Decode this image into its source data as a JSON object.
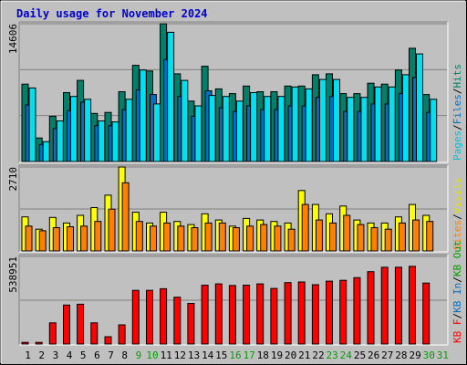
{
  "chart_data": {
    "type": "bar",
    "title": "Daily usage for November 2024",
    "days": [
      "1",
      "2",
      "3",
      "4",
      "5",
      "6",
      "7",
      "8",
      "9",
      "10",
      "11",
      "12",
      "13",
      "14",
      "15",
      "16",
      "17",
      "18",
      "19",
      "20",
      "21",
      "22",
      "23",
      "24",
      "25",
      "26",
      "27",
      "28",
      "29",
      "30",
      "31"
    ],
    "weekend_days": [
      "9",
      "10",
      "16",
      "17",
      "23",
      "24",
      "30",
      "31"
    ],
    "panels": [
      {
        "ymax_label": "14606",
        "ymax": 14606,
        "legend": [
          {
            "text": "Hits",
            "color": "#00806a"
          },
          {
            "text": "/",
            "color": "#000000"
          },
          {
            "text": "Files",
            "color": "#0070c0"
          },
          {
            "text": "/",
            "color": "#000000"
          },
          {
            "text": "Pages",
            "color": "#00c0d8"
          }
        ],
        "series": [
          {
            "name": "Hits",
            "color": "#00806a",
            "values": [
              8200,
              2500,
              4800,
              7300,
              8600,
              5100,
              5200,
              7400,
              10200,
              9600,
              14600,
              9300,
              6400,
              10100,
              7700,
              7200,
              8000,
              7400,
              7400,
              8000,
              8000,
              9200,
              9300,
              7200,
              7200,
              8300,
              8200,
              9700,
              12000,
              7100,
              0
            ]
          },
          {
            "name": "Files",
            "color": "#0070c0",
            "values": [
              6000,
              1800,
              3500,
              5400,
              6300,
              3800,
              3800,
              5500,
              7600,
              7100,
              10800,
              6900,
              4800,
              7500,
              5700,
              5300,
              5900,
              5500,
              5500,
              5900,
              5900,
              6800,
              6900,
              5300,
              5300,
              6100,
              6100,
              7200,
              8900,
              5200,
              0
            ]
          },
          {
            "name": "Pages",
            "color": "#00e0f0",
            "values": [
              7800,
              2100,
              4300,
              6900,
              6600,
              4300,
              4200,
              6600,
              9700,
              6100,
              13700,
              8600,
              5900,
              7000,
              6900,
              6400,
              7300,
              6900,
              6900,
              7900,
              7700,
              8700,
              8700,
              6800,
              6800,
              7900,
              7900,
              9200,
              11400,
              6600,
              0
            ]
          }
        ]
      },
      {
        "ymax_label": "2710",
        "ymax": 2710,
        "legend": [
          {
            "text": "Visits",
            "color": "#e0e000"
          },
          {
            "text": "/",
            "color": "#000000"
          },
          {
            "text": "Sites",
            "color": "#ff8000"
          }
        ],
        "series": [
          {
            "name": "Visits",
            "color": "#ffff00",
            "values": [
              1100,
              700,
              1080,
              900,
              1150,
              1400,
              1800,
              2710,
              1250,
              900,
              1250,
              950,
              850,
              1200,
              1000,
              800,
              1050,
              1000,
              950,
              900,
              1950,
              1500,
              1200,
              1450,
              1000,
              900,
              900,
              1100,
              1500,
              1150,
              0
            ]
          },
          {
            "name": "Sites",
            "color": "#ff8000",
            "values": [
              800,
              650,
              750,
              780,
              800,
              950,
              1350,
              2200,
              950,
              800,
              900,
              800,
              750,
              900,
              900,
              750,
              800,
              850,
              800,
              700,
              1500,
              1000,
              900,
              1150,
              850,
              750,
              700,
              900,
              1000,
              950,
              0
            ]
          }
        ]
      },
      {
        "ymax_label": "538951",
        "ymax": 538951,
        "legend": [
          {
            "text": "KB Out",
            "color": "#00a000"
          },
          {
            "text": "/",
            "color": "#000000"
          },
          {
            "text": "KB In",
            "color": "#0070c0"
          },
          {
            "text": "/",
            "color": "#000000"
          },
          {
            "text": "KB F",
            "color": "#ff0000"
          }
        ],
        "series": [
          {
            "name": "KB F",
            "color": "#ff0000",
            "values": [
              10000,
              10000,
              130000,
              240000,
              245000,
              130000,
              45000,
              118000,
              330000,
              330000,
              340000,
              288000,
              250000,
              362000,
              370000,
              360000,
              362000,
              370000,
              342000,
              378000,
              382000,
              365000,
              387000,
              392000,
              408000,
              445000,
              472000,
              472000,
              478000,
              375000,
              0
            ]
          }
        ]
      }
    ]
  }
}
